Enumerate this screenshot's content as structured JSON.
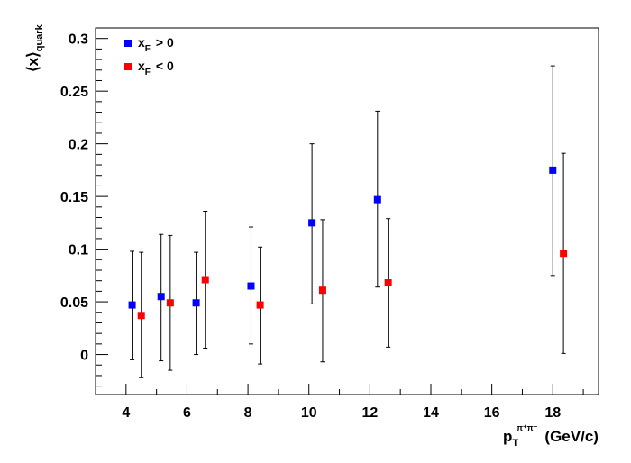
{
  "chart_data": {
    "type": "scatter",
    "xlim": [
      3.0,
      19.5
    ],
    "ylim": [
      -0.038,
      0.31
    ],
    "x_ticks": [
      4,
      6,
      8,
      10,
      12,
      14,
      16,
      18
    ],
    "y_ticks": [
      0,
      0.05,
      0.1,
      0.15,
      0.2,
      0.25,
      0.3
    ],
    "x_tick_labels": [
      "4",
      "6",
      "8",
      "10",
      "12",
      "14",
      "16",
      "18"
    ],
    "y_tick_labels": [
      "0",
      "0.05",
      "0.1",
      "0.15",
      "0.2",
      "0.25",
      "0.3"
    ],
    "ylabel": "⟨x⟩",
    "ylabel_sub": "quark",
    "xlabel_main": "p",
    "xlabel_sub": "T",
    "xlabel_sup": "π⁺π⁻",
    "xlabel_unit": "(GeV/c)",
    "grid": false,
    "legend_position": "top-left",
    "series": [
      {
        "name": "x_F > 0",
        "legend_main": "x",
        "legend_sub": "F",
        "legend_rest": "> 0",
        "color": "#0000ff",
        "points": [
          {
            "x": 4.2,
            "y": 0.047,
            "low": -0.005,
            "high": 0.098
          },
          {
            "x": 5.15,
            "y": 0.055,
            "low": -0.006,
            "high": 0.114
          },
          {
            "x": 6.3,
            "y": 0.049,
            "low": 0.0,
            "high": 0.097
          },
          {
            "x": 8.1,
            "y": 0.065,
            "low": 0.01,
            "high": 0.121
          },
          {
            "x": 10.1,
            "y": 0.125,
            "low": 0.048,
            "high": 0.2
          },
          {
            "x": 12.25,
            "y": 0.147,
            "low": 0.064,
            "high": 0.231
          },
          {
            "x": 18.0,
            "y": 0.175,
            "low": 0.075,
            "high": 0.274
          }
        ]
      },
      {
        "name": "x_F < 0",
        "legend_main": "x",
        "legend_sub": "F",
        "legend_rest": "< 0",
        "color": "#ff0000",
        "points": [
          {
            "x": 4.5,
            "y": 0.037,
            "low": -0.022,
            "high": 0.097
          },
          {
            "x": 5.45,
            "y": 0.049,
            "low": -0.015,
            "high": 0.113
          },
          {
            "x": 6.6,
            "y": 0.071,
            "low": 0.006,
            "high": 0.136
          },
          {
            "x": 8.4,
            "y": 0.047,
            "low": -0.009,
            "high": 0.102
          },
          {
            "x": 10.45,
            "y": 0.061,
            "low": -0.007,
            "high": 0.128
          },
          {
            "x": 12.6,
            "y": 0.068,
            "low": 0.007,
            "high": 0.129
          },
          {
            "x": 18.35,
            "y": 0.096,
            "low": 0.001,
            "high": 0.191
          }
        ]
      }
    ]
  }
}
